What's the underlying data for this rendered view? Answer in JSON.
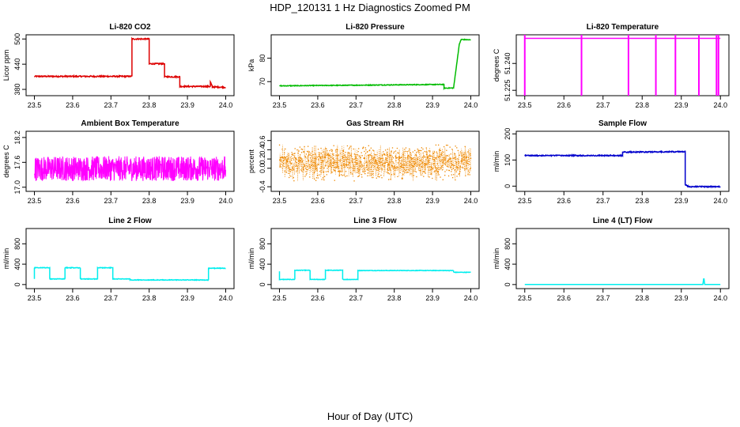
{
  "figure": {
    "title": "HDP_120131  1 Hz Diagnostics Zoomed PM",
    "xlabel": "Hour of Day (UTC)"
  },
  "chart_data": [
    {
      "type": "line",
      "title": "Li-820 CO2",
      "ylabel": "Licor ppm",
      "color": "#dd0000",
      "xlim": [
        23.5,
        24.0
      ],
      "xticks": [
        "23.5",
        "23.6",
        "23.7",
        "23.8",
        "23.9",
        "24.0"
      ],
      "ylim": [
        365,
        510
      ],
      "yticks": [
        380,
        440,
        500
      ],
      "series": {
        "x": [
          23.5,
          23.755,
          23.755,
          23.8,
          23.8,
          23.84,
          23.84,
          23.88,
          23.88,
          23.96,
          23.96,
          23.965,
          23.965,
          24.0
        ],
        "y": [
          411,
          411,
          500,
          500,
          441,
          441,
          410,
          410,
          387,
          387,
          398,
          386,
          386,
          385
        ]
      },
      "noise": 1.5
    },
    {
      "type": "line",
      "title": "Li-820 Pressure",
      "ylabel": "kPa",
      "color": "#00bb00",
      "xlim": [
        23.5,
        24.0
      ],
      "xticks": [
        "23.5",
        "23.6",
        "23.7",
        "23.8",
        "23.9",
        "24.0"
      ],
      "ylim": [
        64,
        90
      ],
      "yticks": [
        70,
        80
      ],
      "series": {
        "x": [
          23.5,
          23.93,
          23.93,
          23.955,
          23.97,
          23.975,
          24.0
        ],
        "y": [
          68.2,
          68.8,
          67.2,
          67.3,
          86,
          88,
          87.8
        ]
      },
      "noise": 0.15
    },
    {
      "type": "line",
      "title": "Li-820 Temperature",
      "ylabel": "degrees C",
      "color": "#ff00ff",
      "xlim": [
        23.5,
        24.0
      ],
      "xticks": [
        "23.5",
        "23.6",
        "23.7",
        "23.8",
        "23.9",
        "24.0"
      ],
      "ylim": [
        51.222,
        51.256
      ],
      "yticks": [
        51.225,
        51.24
      ],
      "ytick_labels": [
        "51.225",
        "51.240"
      ],
      "series": {
        "x": [
          23.5,
          24.0
        ],
        "y": [
          51.254,
          51.254
        ]
      },
      "spikes": [
        23.5,
        23.645,
        23.765,
        23.835,
        23.885,
        23.945,
        23.99,
        23.995
      ],
      "noise": 0
    },
    {
      "type": "line",
      "title": "Ambient Box Temperature",
      "ylabel": "degrees C",
      "color": "#ff00ff",
      "xlim": [
        23.5,
        24.0
      ],
      "xticks": [
        "23.5",
        "23.6",
        "23.7",
        "23.8",
        "23.9",
        "24.0"
      ],
      "ylim": [
        16.9,
        18.35
      ],
      "yticks": [
        17.0,
        17.6,
        18.2
      ],
      "ytick_labels": [
        "17.0",
        "17.6",
        "18.2"
      ],
      "series": {
        "x": [
          23.5,
          24.0
        ],
        "y": [
          17.45,
          17.45
        ]
      },
      "noise": 0.3
    },
    {
      "type": "scatter",
      "title": "Gas Stream RH",
      "ylabel": "percent",
      "color": "#ee8800",
      "xlim": [
        23.5,
        24.0
      ],
      "xticks": [
        "23.5",
        "23.6",
        "23.7",
        "23.8",
        "23.9",
        "24.0"
      ],
      "ylim": [
        -0.5,
        0.8
      ],
      "yticks": [
        -0.4,
        0.0,
        0.2,
        0.4,
        0.6
      ],
      "ytick_labels": [
        "-0.4",
        "0.0",
        "0.2",
        "0.4",
        "0.6"
      ],
      "series": {
        "x": [
          23.5,
          24.0
        ],
        "y": [
          0.12,
          0.12
        ]
      },
      "noise": 0.3
    },
    {
      "type": "line",
      "title": "Sample Flow",
      "ylabel": "ml/min",
      "color": "#0000cc",
      "xlim": [
        23.5,
        24.0
      ],
      "xticks": [
        "23.5",
        "23.6",
        "23.7",
        "23.8",
        "23.9",
        "24.0"
      ],
      "ylim": [
        -20,
        210
      ],
      "yticks": [
        0,
        100,
        200
      ],
      "series": {
        "x": [
          23.5,
          23.75,
          23.75,
          23.91,
          23.91,
          23.92,
          24.0
        ],
        "y": [
          117,
          117,
          130,
          132,
          5,
          -2,
          -2
        ]
      },
      "noise": 2
    },
    {
      "type": "line",
      "title": "Line 2 Flow",
      "ylabel": "ml/min",
      "color": "#00eeee",
      "xlim": [
        23.5,
        24.0
      ],
      "xticks": [
        "23.5",
        "23.6",
        "23.7",
        "23.8",
        "23.9",
        "24.0"
      ],
      "ylim": [
        -80,
        1100
      ],
      "yticks": [
        0,
        400,
        800
      ],
      "series": {
        "x": [
          23.5,
          23.5,
          23.54,
          23.54,
          23.58,
          23.58,
          23.62,
          23.62,
          23.665,
          23.665,
          23.705,
          23.705,
          23.75,
          23.75,
          23.955,
          23.955,
          24.0
        ],
        "y": [
          110,
          330,
          330,
          110,
          110,
          330,
          330,
          110,
          110,
          330,
          330,
          110,
          110,
          90,
          90,
          320,
          320
        ]
      },
      "noise": 6
    },
    {
      "type": "line",
      "title": "Line 3 Flow",
      "ylabel": "ml/min",
      "color": "#00eeee",
      "xlim": [
        23.5,
        24.0
      ],
      "xticks": [
        "23.5",
        "23.6",
        "23.7",
        "23.8",
        "23.9",
        "24.0"
      ],
      "ylim": [
        -80,
        1100
      ],
      "yticks": [
        0,
        400,
        800
      ],
      "series": {
        "x": [
          23.5,
          23.5,
          23.5,
          23.54,
          23.54,
          23.58,
          23.58,
          23.62,
          23.62,
          23.665,
          23.665,
          23.705,
          23.705,
          23.955,
          23.955,
          24.0
        ],
        "y": [
          260,
          100,
          100,
          100,
          280,
          280,
          100,
          100,
          280,
          280,
          100,
          100,
          275,
          275,
          240,
          240
        ]
      },
      "noise": 5
    },
    {
      "type": "line",
      "title": "Line 4 (LT) Flow",
      "ylabel": "ml/min",
      "color": "#00eeee",
      "xlim": [
        23.5,
        24.0
      ],
      "xticks": [
        "23.5",
        "23.6",
        "23.7",
        "23.8",
        "23.9",
        "24.0"
      ],
      "ylim": [
        -80,
        1100
      ],
      "yticks": [
        0,
        400,
        800
      ],
      "series": {
        "x": [
          23.5,
          23.955,
          23.957,
          23.958,
          23.96,
          24.0
        ],
        "y": [
          0,
          0,
          110,
          110,
          0,
          0
        ]
      },
      "noise": 0
    }
  ]
}
